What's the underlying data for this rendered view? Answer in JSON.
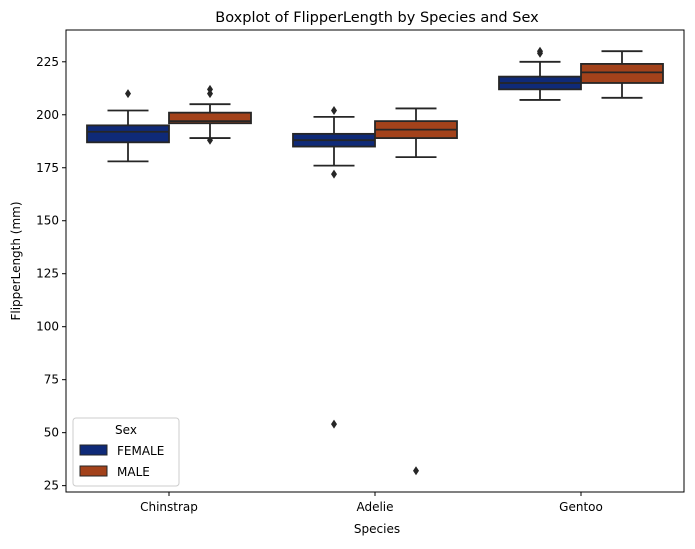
{
  "chart_data": {
    "type": "boxplot",
    "title": "Boxplot of FlipperLength by Species and Sex",
    "xlabel": "Species",
    "ylabel": "FlipperLength (mm)",
    "categories": [
      "Chinstrap",
      "Adelie",
      "Gentoo"
    ],
    "ylim": [
      22,
      240
    ],
    "yticks": [
      25,
      50,
      75,
      100,
      125,
      150,
      175,
      200,
      225
    ],
    "grid": false,
    "legend": {
      "title": "Sex",
      "placement": "lower-left"
    },
    "series": [
      {
        "name": "FEMALE",
        "color": "#0f2a78",
        "boxes": [
          {
            "category": "Chinstrap",
            "whisker_low": 178,
            "q1": 187,
            "median": 192,
            "q3": 195,
            "whisker_high": 202,
            "outliers": [
              210
            ]
          },
          {
            "category": "Adelie",
            "whisker_low": 176,
            "q1": 185,
            "median": 188,
            "q3": 191,
            "whisker_high": 199,
            "outliers": [
              202,
              172,
              54
            ]
          },
          {
            "category": "Gentoo",
            "whisker_low": 207,
            "q1": 212,
            "median": 215,
            "q3": 218,
            "whisker_high": 225,
            "outliers": [
              229,
              230
            ]
          }
        ]
      },
      {
        "name": "MALE",
        "color": "#a3421b",
        "boxes": [
          {
            "category": "Chinstrap",
            "whisker_low": 189,
            "q1": 196,
            "median": 197,
            "q3": 201,
            "whisker_high": 205,
            "outliers": [
              212,
              210,
              188
            ]
          },
          {
            "category": "Adelie",
            "whisker_low": 180,
            "q1": 189,
            "median": 193,
            "q3": 197,
            "whisker_high": 203,
            "outliers": [
              32
            ]
          },
          {
            "category": "Gentoo",
            "whisker_low": 208,
            "q1": 215,
            "median": 220,
            "q3": 224,
            "whisker_high": 230,
            "outliers": []
          }
        ]
      }
    ]
  }
}
